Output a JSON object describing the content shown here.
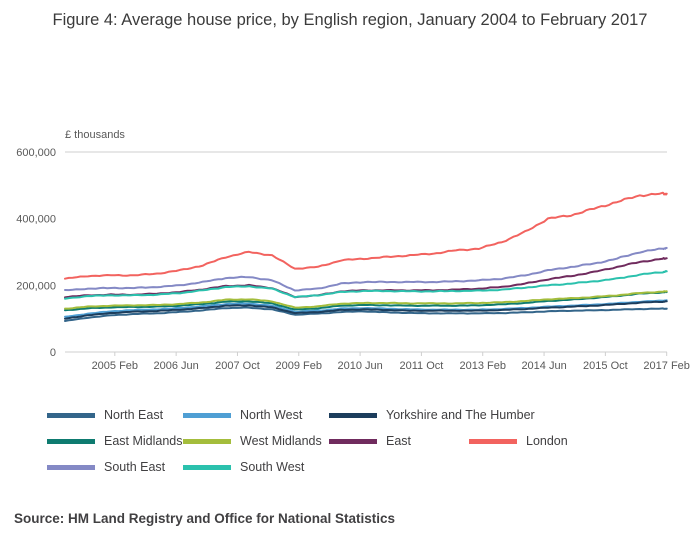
{
  "title": "Figure 4: Average house price, by English region, January 2004 to February 2017",
  "source": "Source: HM Land Registry and Office for National Statistics",
  "y_axis": {
    "label": "£ thousands",
    "max": 600000,
    "ticks": [
      {
        "value": 0,
        "label": "0"
      },
      {
        "value": 200000,
        "label": "200,000"
      },
      {
        "value": 400000,
        "label": "400,000"
      },
      {
        "value": 600000,
        "label": "600,000"
      }
    ]
  },
  "x_axis": {
    "range": [
      2004.0,
      2017.09
    ],
    "ticks": [
      {
        "t": 2005.083,
        "label": "2005 Feb"
      },
      {
        "t": 2006.417,
        "label": "2006 Jun"
      },
      {
        "t": 2007.75,
        "label": "2007 Oct"
      },
      {
        "t": 2009.083,
        "label": "2009 Feb"
      },
      {
        "t": 2010.417,
        "label": "2010 Jun"
      },
      {
        "t": 2011.75,
        "label": "2011 Oct"
      },
      {
        "t": 2013.083,
        "label": "2013 Feb"
      },
      {
        "t": 2014.417,
        "label": "2014 Jun"
      },
      {
        "t": 2015.75,
        "label": "2015 Oct"
      },
      {
        "t": 2017.083,
        "label": "2017 Feb"
      }
    ]
  },
  "legend": {
    "rows": [
      [
        "North East",
        "North West",
        "Yorkshire and The Humber"
      ],
      [
        "East Midlands",
        "West Midlands",
        "East",
        "London"
      ],
      [
        "South East",
        "South West"
      ]
    ]
  },
  "chart_data": {
    "type": "line",
    "title": "Figure 4: Average house price, by English region, January 2004 to February 2017",
    "xlabel": "",
    "ylabel": "£ thousands",
    "ylim": [
      0,
      600000
    ],
    "grid": false,
    "legend_position": "bottom",
    "x": [
      2004.0,
      2004.5,
      2005.0,
      2005.5,
      2006.0,
      2006.5,
      2007.0,
      2007.5,
      2008.0,
      2008.5,
      2009.0,
      2009.5,
      2010.0,
      2010.5,
      2011.0,
      2011.5,
      2012.0,
      2012.5,
      2013.0,
      2013.5,
      2014.0,
      2014.5,
      2015.0,
      2015.5,
      2016.0,
      2016.5,
      2017.0,
      2017.083
    ],
    "series": [
      {
        "name": "North East",
        "color": "#33658a",
        "values": [
          93000,
          103000,
          110000,
          114000,
          116000,
          120000,
          125000,
          132000,
          133000,
          128000,
          112000,
          115000,
          120000,
          122000,
          119000,
          117000,
          116000,
          116000,
          116000,
          117000,
          119000,
          122000,
          124000,
          125000,
          127000,
          129000,
          130000,
          130000
        ]
      },
      {
        "name": "North West",
        "color": "#4f9fd4",
        "values": [
          105000,
          115000,
          122000,
          126000,
          128000,
          132000,
          137000,
          144000,
          145000,
          139000,
          121000,
          124000,
          130000,
          132000,
          130000,
          128000,
          127000,
          127000,
          127000,
          129000,
          132000,
          136000,
          139000,
          142000,
          146000,
          151000,
          154000,
          155000
        ]
      },
      {
        "name": "Yorkshire and The Humber",
        "color": "#1c3d5c",
        "values": [
          100000,
          110000,
          117000,
          121000,
          123000,
          127000,
          132000,
          139000,
          140000,
          134000,
          117000,
          120000,
          126000,
          128000,
          126000,
          124000,
          124000,
          124000,
          124000,
          126000,
          129000,
          133000,
          136000,
          139000,
          143000,
          148000,
          151000,
          152000
        ]
      },
      {
        "name": "East Midlands",
        "color": "#0e7b70",
        "values": [
          125000,
          131000,
          134000,
          135000,
          136000,
          139000,
          144000,
          151000,
          152000,
          146000,
          127000,
          131000,
          139000,
          141000,
          140000,
          139000,
          139000,
          139000,
          140000,
          143000,
          147000,
          153000,
          157000,
          162000,
          168000,
          175000,
          179000,
          180000
        ]
      },
      {
        "name": "West Midlands",
        "color": "#a4bd3c",
        "values": [
          130000,
          136000,
          139000,
          140000,
          141000,
          144000,
          149000,
          157000,
          158000,
          152000,
          133000,
          137000,
          145000,
          147000,
          147000,
          146000,
          146000,
          146000,
          147000,
          149000,
          153000,
          158000,
          161000,
          165000,
          170000,
          177000,
          181000,
          182000
        ]
      },
      {
        "name": "East",
        "color": "#702b5e",
        "values": [
          165000,
          170000,
          172000,
          172000,
          175000,
          180000,
          188000,
          198000,
          200000,
          192000,
          165000,
          170000,
          182000,
          185000,
          185000,
          185000,
          185000,
          187000,
          190000,
          195000,
          205000,
          218000,
          228000,
          240000,
          255000,
          270000,
          280000,
          281000
        ]
      },
      {
        "name": "London",
        "color": "#f2635f",
        "values": [
          220000,
          228000,
          230000,
          230000,
          235000,
          245000,
          260000,
          285000,
          300000,
          290000,
          250000,
          255000,
          275000,
          280000,
          285000,
          290000,
          295000,
          305000,
          310000,
          330000,
          360000,
          400000,
          410000,
          430000,
          450000,
          470000,
          475000,
          475000
        ]
      },
      {
        "name": "South East",
        "color": "#8489c5",
        "values": [
          185000,
          190000,
          192000,
          192000,
          195000,
          200000,
          210000,
          222000,
          225000,
          215000,
          185000,
          190000,
          205000,
          210000,
          210000,
          210000,
          210000,
          212000,
          215000,
          220000,
          230000,
          245000,
          255000,
          265000,
          280000,
          300000,
          310000,
          312000
        ]
      },
      {
        "name": "South West",
        "color": "#2bc1ad",
        "values": [
          160000,
          168000,
          170000,
          170000,
          172000,
          177000,
          185000,
          195000,
          197000,
          190000,
          165000,
          170000,
          180000,
          183000,
          183000,
          182000,
          182000,
          183000,
          184000,
          187000,
          193000,
          200000,
          205000,
          212000,
          220000,
          232000,
          240000,
          242000
        ]
      }
    ]
  }
}
